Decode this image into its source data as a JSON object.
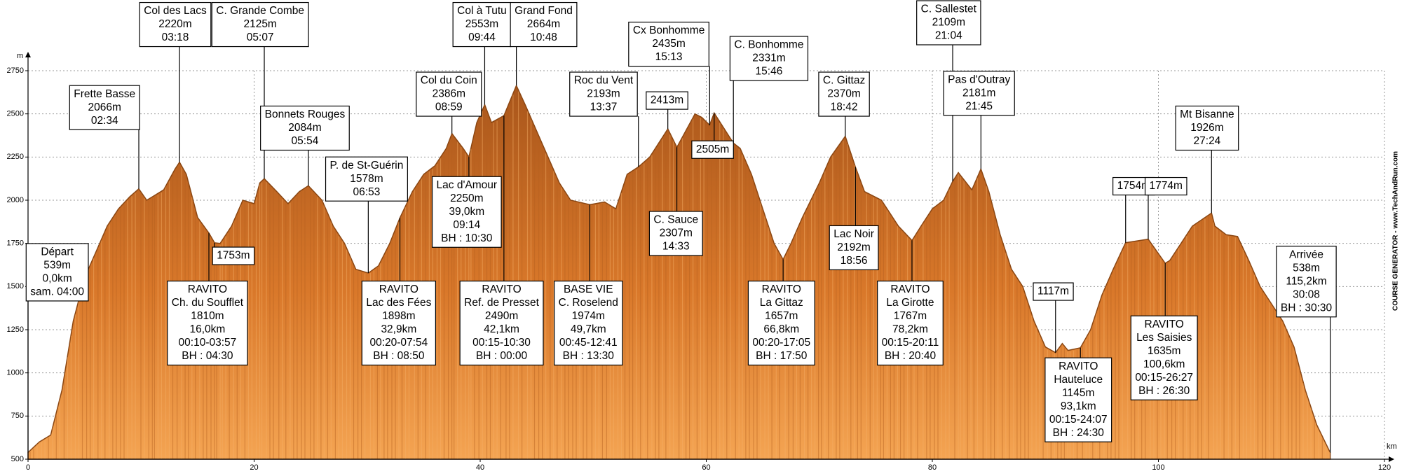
{
  "chart_data": {
    "type": "area",
    "xlabel": "km",
    "ylabel": "m",
    "side_text": "COURSE GENERATOR - www.TechAndRun.com",
    "xlim": [
      0,
      120
    ],
    "xticks": [
      0,
      20,
      40,
      60,
      80,
      100,
      120
    ],
    "ylim": [
      500,
      2750
    ],
    "yticks": [
      500,
      750,
      1000,
      1250,
      1500,
      1750,
      2000,
      2250,
      2500,
      2750
    ],
    "grid": true,
    "color": "#c9671f",
    "x": [
      0,
      1,
      2,
      3,
      4,
      5,
      6,
      7,
      8,
      9,
      9.8,
      10.5,
      11,
      12,
      13,
      13.4,
      14,
      15,
      16,
      16.5,
      17,
      18,
      19,
      20,
      20.5,
      20.9,
      22,
      23,
      24,
      24.8,
      26,
      27,
      28,
      29,
      30.1,
      31,
      32,
      32.9,
      34,
      35,
      36,
      37,
      37.5,
      38.5,
      39,
      39.7,
      40.4,
      41,
      42.1,
      43.2,
      44,
      45,
      46,
      47,
      48,
      49.7,
      51,
      52,
      53,
      54,
      55,
      56.6,
      57.4,
      59,
      59.6,
      60.3,
      60.7,
      62.4,
      63,
      64,
      65,
      66,
      66.8,
      67.5,
      68.5,
      70,
      71,
      72.3,
      73.2,
      74,
      75.5,
      77,
      78.2,
      79,
      80,
      81,
      81.8,
      82.3,
      83.5,
      84.3,
      85,
      86,
      87,
      88,
      89,
      90,
      90.9,
      91.5,
      92,
      93.1,
      94,
      95,
      96,
      97.1,
      99.1,
      100.6,
      101,
      102,
      103,
      104.7,
      105,
      106,
      107,
      108,
      109,
      110,
      111,
      112,
      113,
      114,
      115.2
    ],
    "values": [
      539,
      600,
      640,
      900,
      1300,
      1550,
      1700,
      1850,
      1950,
      2020,
      2066,
      2000,
      2020,
      2060,
      2180,
      2220,
      2150,
      1900,
      1810,
      1753,
      1750,
      1850,
      2000,
      1980,
      2100,
      2125,
      2050,
      1980,
      2050,
      2084,
      2000,
      1850,
      1750,
      1600,
      1578,
      1620,
      1750,
      1898,
      2050,
      2150,
      2200,
      2300,
      2386,
      2300,
      2250,
      2450,
      2553,
      2450,
      2490,
      2664,
      2550,
      2400,
      2250,
      2100,
      2000,
      1974,
      1990,
      1950,
      2150,
      2193,
      2250,
      2413,
      2307,
      2500,
      2480,
      2435,
      2505,
      2331,
      2300,
      2150,
      1950,
      1750,
      1657,
      1750,
      1900,
      2100,
      2250,
      2370,
      2192,
      2050,
      2000,
      1850,
      1767,
      1850,
      1950,
      2000,
      2109,
      2160,
      2060,
      2181,
      2050,
      1800,
      1600,
      1500,
      1300,
      1150,
      1117,
      1170,
      1130,
      1145,
      1250,
      1450,
      1600,
      1754,
      1774,
      1635,
      1650,
      1750,
      1850,
      1926,
      1850,
      1800,
      1790,
      1650,
      1500,
      1400,
      1300,
      1150,
      900,
      700,
      538
    ],
    "annotations": [
      {
        "x": 0,
        "lines": [
          "Départ",
          "539m",
          "0,0km",
          "sam. 04:00"
        ]
      },
      {
        "x": 9.8,
        "lines": [
          "Frette Basse",
          "2066m",
          "02:34"
        ]
      },
      {
        "x": 13.4,
        "lines": [
          "Col des Lacs",
          "2220m",
          "03:18"
        ]
      },
      {
        "x": 16.0,
        "lines": [
          "RAVITO",
          "Ch. du Soufflet",
          "1810m",
          "16,0km",
          "00:10-03:57",
          "BH : 04:30"
        ]
      },
      {
        "x": 16.5,
        "lines": [
          "1753m"
        ]
      },
      {
        "x": 20.9,
        "lines": [
          "C. Grande Combe",
          "2125m",
          "05:07"
        ]
      },
      {
        "x": 24.8,
        "lines": [
          "Bonnets Rouges",
          "2084m",
          "05:54"
        ]
      },
      {
        "x": 30.1,
        "lines": [
          "P. de St-Guérin",
          "1578m",
          "06:53"
        ]
      },
      {
        "x": 32.9,
        "lines": [
          "RAVITO",
          "Lac des Fées",
          "1898m",
          "32,9km",
          "00:20-07:54",
          "BH : 08:50"
        ]
      },
      {
        "x": 37.5,
        "lines": [
          "Col du Coin",
          "2386m",
          "08:59"
        ]
      },
      {
        "x": 39.0,
        "lines": [
          "Lac d'Amour",
          "2250m",
          "39,0km",
          "09:14",
          "BH : 10:30"
        ]
      },
      {
        "x": 40.4,
        "lines": [
          "Col à Tutu",
          "2553m",
          "09:44"
        ]
      },
      {
        "x": 42.1,
        "lines": [
          "RAVITO",
          "Ref. de Presset",
          "2490m",
          "42,1km",
          "00:15-10:30",
          "BH : 00:00"
        ]
      },
      {
        "x": 43.2,
        "lines": [
          "Grand Fond",
          "2664m",
          "10:48"
        ]
      },
      {
        "x": 49.7,
        "lines": [
          "BASE VIE",
          "C. Roselend",
          "1974m",
          "49,7km",
          "00:45-12:41",
          "BH : 13:30"
        ]
      },
      {
        "x": 54.0,
        "lines": [
          "Roc du Vent",
          "2193m",
          "13:37"
        ]
      },
      {
        "x": 56.6,
        "lines": [
          "2413m"
        ]
      },
      {
        "x": 60.3,
        "lines": [
          "Cx Bonhomme",
          "2435m",
          "15:13"
        ]
      },
      {
        "x": 57.4,
        "lines": [
          "C. Sauce",
          "2307m",
          "14:33"
        ]
      },
      {
        "x": 60.7,
        "lines": [
          "2505m"
        ]
      },
      {
        "x": 62.4,
        "lines": [
          "C. Bonhomme",
          "2331m",
          "15:46"
        ]
      },
      {
        "x": 66.8,
        "lines": [
          "RAVITO",
          "La Gittaz",
          "1657m",
          "66,8km",
          "00:20-17:05",
          "BH : 17:50"
        ]
      },
      {
        "x": 72.3,
        "lines": [
          "C. Gittaz",
          "2370m",
          "18:42"
        ]
      },
      {
        "x": 73.2,
        "lines": [
          "Lac Noir",
          "2192m",
          "18:56"
        ]
      },
      {
        "x": 78.2,
        "lines": [
          "RAVITO",
          "La Girotte",
          "1767m",
          "78,2km",
          "00:15-20:11",
          "BH : 20:40"
        ]
      },
      {
        "x": 81.8,
        "lines": [
          "C. Sallestet",
          "2109m",
          "21:04"
        ]
      },
      {
        "x": 84.3,
        "lines": [
          "Pas d'Outray",
          "2181m",
          "21:45"
        ]
      },
      {
        "x": 90.9,
        "lines": [
          "1117m"
        ]
      },
      {
        "x": 93.1,
        "lines": [
          "RAVITO",
          "Hauteluce",
          "1145m",
          "93,1km",
          "00:15-24:07",
          "BH : 24:30"
        ]
      },
      {
        "x": 97.1,
        "lines": [
          "1754m"
        ]
      },
      {
        "x": 99.1,
        "lines": [
          "1774m"
        ]
      },
      {
        "x": 100.6,
        "lines": [
          "RAVITO",
          "Les Saisies",
          "1635m",
          "100,6km",
          "00:15-26:27",
          "BH : 26:30"
        ]
      },
      {
        "x": 104.7,
        "lines": [
          "Mt Bisanne",
          "1926m",
          "27:24"
        ]
      },
      {
        "x": 115.2,
        "lines": [
          "Arrivée",
          "538m",
          "115,2km",
          "30:08",
          "BH : 30:30"
        ]
      }
    ]
  }
}
